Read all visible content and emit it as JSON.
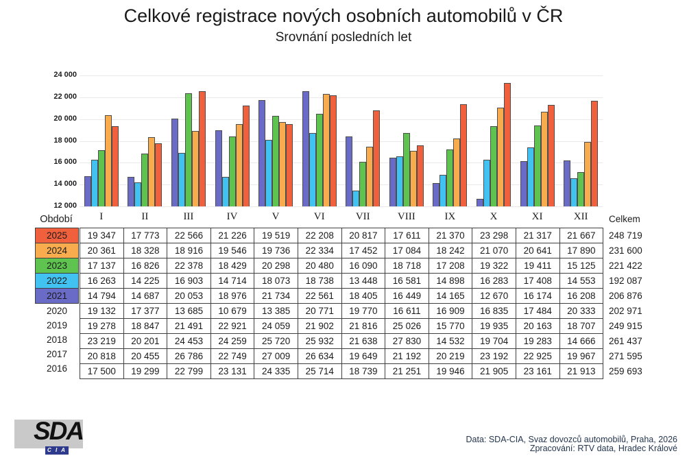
{
  "title": "Celkové registrace nových osobních automobilů v ČR",
  "subtitle": "Srovnání posledních let",
  "axis": {
    "period_label": "Období",
    "total_label": "Celkem",
    "y_ticks": [
      "24 000",
      "22 000",
      "20 000",
      "18 000",
      "16 000",
      "14 000",
      "12 000"
    ]
  },
  "chart_data": {
    "type": "bar",
    "categories": [
      "I",
      "II",
      "III",
      "IV",
      "V",
      "VI",
      "VII",
      "VIII",
      "IX",
      "X",
      "XI",
      "XII"
    ],
    "ylim": [
      12000,
      24000
    ],
    "grid": true,
    "legend_position": "none",
    "xlabel": "Období",
    "ylabel": "",
    "series": [
      {
        "name": "2021",
        "color": "#6A6BC7",
        "values": [
          14794,
          14687,
          20053,
          18976,
          21734,
          22561,
          18405,
          16449,
          14165,
          12670,
          16174,
          16208
        ]
      },
      {
        "name": "2022",
        "color": "#42C2F1",
        "values": [
          16263,
          14225,
          16903,
          14714,
          18073,
          18738,
          13448,
          16581,
          14898,
          16283,
          17408,
          14553
        ]
      },
      {
        "name": "2023",
        "color": "#5EC44F",
        "values": [
          17137,
          16826,
          22378,
          18429,
          20298,
          20480,
          16090,
          18718,
          17208,
          19322,
          19411,
          15125
        ]
      },
      {
        "name": "2024",
        "color": "#F9AC4E",
        "values": [
          20361,
          18328,
          18916,
          19546,
          19736,
          22334,
          17452,
          17084,
          18242,
          21070,
          20641,
          17890
        ]
      },
      {
        "name": "2025",
        "color": "#F1603C",
        "values": [
          19347,
          17773,
          22566,
          21226,
          19519,
          22208,
          20817,
          17611,
          21370,
          23298,
          21317,
          21667
        ]
      }
    ]
  },
  "table": {
    "rows": [
      {
        "year": "2025",
        "color": "#F1603C",
        "values": [
          "19 347",
          "17 773",
          "22 566",
          "21 226",
          "19 519",
          "22 208",
          "20 817",
          "17 611",
          "21 370",
          "23 298",
          "21 317",
          "21 667"
        ],
        "total": "248 719"
      },
      {
        "year": "2024",
        "color": "#F9AC4E",
        "values": [
          "20 361",
          "18 328",
          "18 916",
          "19 546",
          "19 736",
          "22 334",
          "17 452",
          "17 084",
          "18 242",
          "21 070",
          "20 641",
          "17 890"
        ],
        "total": "231 600"
      },
      {
        "year": "2023",
        "color": "#5EC44F",
        "values": [
          "17 137",
          "16 826",
          "22 378",
          "18 429",
          "20 298",
          "20 480",
          "16 090",
          "18 718",
          "17 208",
          "19 322",
          "19 411",
          "15 125"
        ],
        "total": "221 422"
      },
      {
        "year": "2022",
        "color": "#42C2F1",
        "values": [
          "16 263",
          "14 225",
          "16 903",
          "14 714",
          "18 073",
          "18 738",
          "13 448",
          "16 581",
          "14 898",
          "16 283",
          "17 408",
          "14 553"
        ],
        "total": "192 087"
      },
      {
        "year": "2021",
        "color": "#6A6BC7",
        "values": [
          "14 794",
          "14 687",
          "20 053",
          "18 976",
          "21 734",
          "22 561",
          "18 405",
          "16 449",
          "14 165",
          "12 670",
          "16 174",
          "16 208"
        ],
        "total": "206 876"
      },
      {
        "year": "2020",
        "color": null,
        "values": [
          "19 132",
          "17 377",
          "13 685",
          "10 679",
          "13 385",
          "20 771",
          "19 770",
          "16 611",
          "16 909",
          "16 835",
          "17 484",
          "20 333"
        ],
        "total": "202 971"
      },
      {
        "year": "2019",
        "color": null,
        "values": [
          "19 278",
          "18 847",
          "21 491",
          "22 921",
          "24 059",
          "21 902",
          "21 816",
          "25 026",
          "15 770",
          "19 935",
          "20 163",
          "18 707"
        ],
        "total": "249 915"
      },
      {
        "year": "2018",
        "color": null,
        "values": [
          "23 219",
          "20 201",
          "24 453",
          "24 259",
          "25 720",
          "25 932",
          "21 638",
          "27 830",
          "14 532",
          "19 704",
          "19 283",
          "14 666"
        ],
        "total": "261 437"
      },
      {
        "year": "2017",
        "color": null,
        "values": [
          "20 818",
          "20 455",
          "26 786",
          "22 749",
          "27 009",
          "26 634",
          "19 649",
          "21 192",
          "20 219",
          "23 192",
          "22 925",
          "19 967"
        ],
        "total": "271 595"
      },
      {
        "year": "2016",
        "color": null,
        "values": [
          "17 500",
          "19 299",
          "22 799",
          "23 131",
          "24 335",
          "25 714",
          "18 739",
          "21 251",
          "19 946",
          "21 905",
          "23 161",
          "21 913"
        ],
        "total": "259 693"
      }
    ]
  },
  "logo": {
    "main": "SDA",
    "sub": "C I A"
  },
  "footer": {
    "line1": "Data: SDA-CIA, Svaz dovozců automobilů, Praha, 2026",
    "line2": "Zpracování: RTV data, Hradec Králové"
  }
}
